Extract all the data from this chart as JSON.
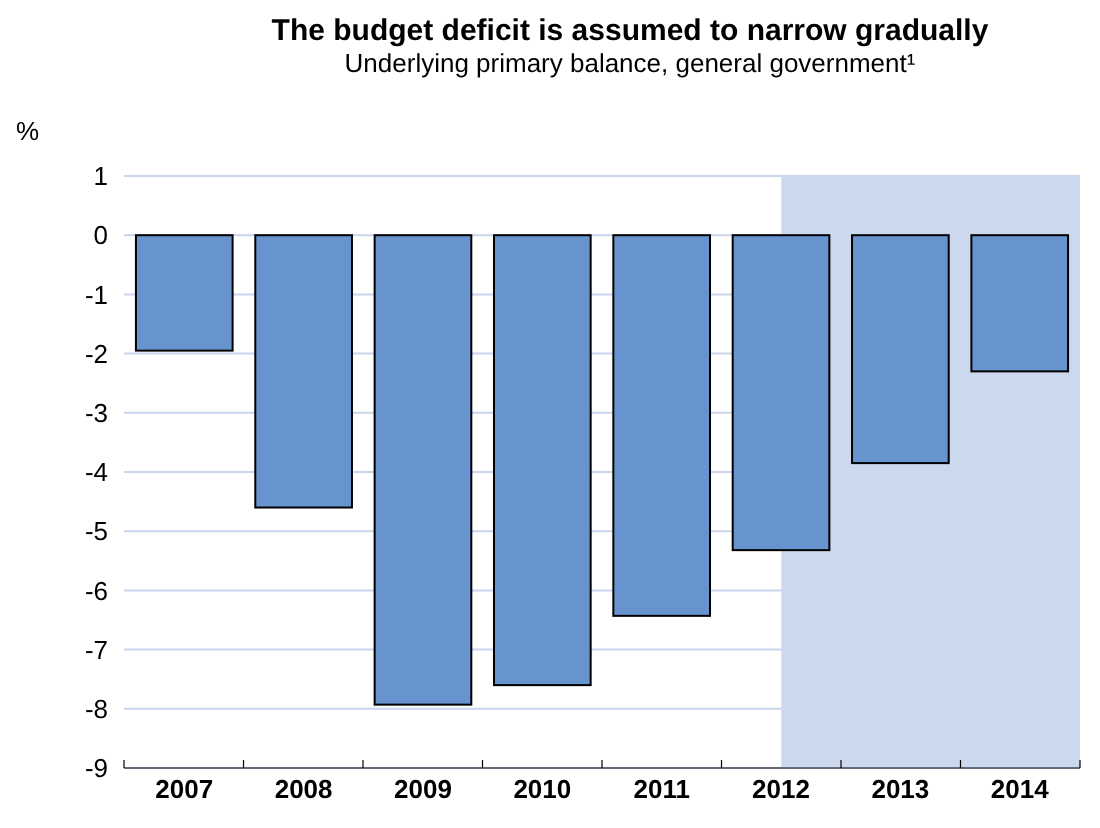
{
  "chart_data": {
    "type": "bar",
    "title": "The budget deficit is assumed to narrow gradually",
    "subtitle": "Underlying primary balance, general government¹",
    "ylabel": "%",
    "categories": [
      "2007",
      "2008",
      "2009",
      "2010",
      "2011",
      "2012",
      "2013",
      "2014"
    ],
    "values": [
      -1.95,
      -4.6,
      -7.93,
      -7.6,
      -6.43,
      -5.32,
      -3.85,
      -2.3
    ],
    "color": "#6794cf",
    "ylim": [
      -9,
      1
    ],
    "yticks": [
      -9,
      -8,
      -7,
      -6,
      -5,
      -4,
      -3,
      -2,
      -1,
      0,
      1
    ],
    "grid": "y",
    "bands": [
      {
        "axis": "x",
        "from": "2012",
        "to": "2014",
        "color": "#ccd8ee"
      }
    ]
  }
}
